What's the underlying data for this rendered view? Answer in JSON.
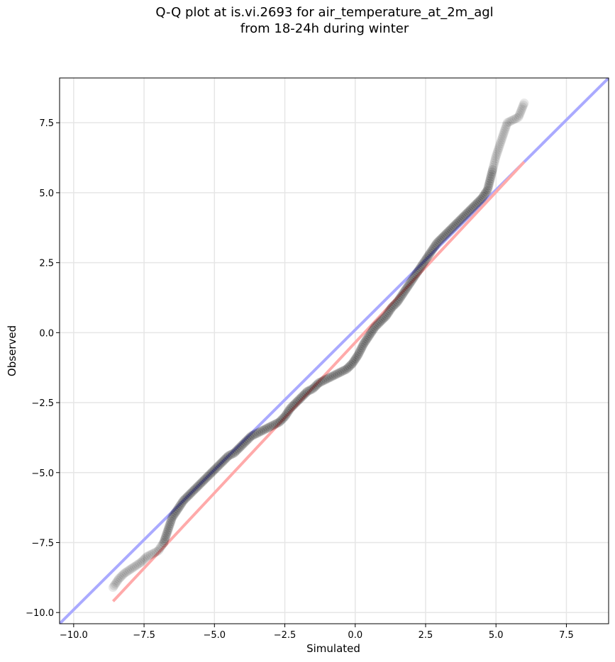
{
  "title_line1": "Q-Q plot at is.vi.2693 for air_temperature_at_2m_agl",
  "title_line2": "from 18-24h during winter",
  "chart_data": {
    "type": "scatter",
    "xlabel": "Simulated",
    "ylabel": "Observed",
    "xlim": [
      -10.5,
      9.0
    ],
    "ylim": [
      -10.4,
      9.1
    ],
    "xticks": [
      -10.0,
      -7.5,
      -5.0,
      -2.5,
      0.0,
      2.5,
      5.0,
      7.5
    ],
    "yticks": [
      -10.0,
      -7.5,
      -5.0,
      -2.5,
      0.0,
      2.5,
      5.0,
      7.5
    ],
    "grid": true,
    "points": [
      [
        -8.6,
        -9.1
      ],
      [
        -8.4,
        -8.8
      ],
      [
        -8.2,
        -8.6
      ],
      [
        -7.9,
        -8.4
      ],
      [
        -7.6,
        -8.2
      ],
      [
        -7.4,
        -8.0
      ],
      [
        -7.2,
        -7.9
      ],
      [
        -7.0,
        -7.8
      ],
      [
        -6.8,
        -7.5
      ],
      [
        -6.7,
        -7.2
      ],
      [
        -6.6,
        -6.9
      ],
      [
        -6.5,
        -6.6
      ],
      [
        -6.3,
        -6.3
      ],
      [
        -6.1,
        -6.0
      ],
      [
        -5.9,
        -5.8
      ],
      [
        -5.7,
        -5.6
      ],
      [
        -5.5,
        -5.4
      ],
      [
        -5.3,
        -5.2
      ],
      [
        -5.1,
        -5.0
      ],
      [
        -4.9,
        -4.8
      ],
      [
        -4.7,
        -4.6
      ],
      [
        -4.5,
        -4.4
      ],
      [
        -4.3,
        -4.3
      ],
      [
        -4.1,
        -4.1
      ],
      [
        -3.9,
        -3.9
      ],
      [
        -3.7,
        -3.7
      ],
      [
        -3.5,
        -3.6
      ],
      [
        -3.3,
        -3.5
      ],
      [
        -3.1,
        -3.4
      ],
      [
        -2.9,
        -3.3
      ],
      [
        -2.7,
        -3.2
      ],
      [
        -2.5,
        -3.0
      ],
      [
        -2.3,
        -2.7
      ],
      [
        -2.1,
        -2.5
      ],
      [
        -1.9,
        -2.3
      ],
      [
        -1.7,
        -2.1
      ],
      [
        -1.5,
        -2.0
      ],
      [
        -1.3,
        -1.8
      ],
      [
        -1.1,
        -1.7
      ],
      [
        -0.9,
        -1.6
      ],
      [
        -0.7,
        -1.5
      ],
      [
        -0.5,
        -1.4
      ],
      [
        -0.3,
        -1.3
      ],
      [
        -0.1,
        -1.1
      ],
      [
        0.1,
        -0.8
      ],
      [
        0.3,
        -0.4
      ],
      [
        0.5,
        -0.1
      ],
      [
        0.7,
        0.2
      ],
      [
        0.9,
        0.4
      ],
      [
        1.1,
        0.6
      ],
      [
        1.3,
        0.9
      ],
      [
        1.5,
        1.1
      ],
      [
        1.7,
        1.4
      ],
      [
        1.9,
        1.7
      ],
      [
        2.1,
        2.0
      ],
      [
        2.3,
        2.3
      ],
      [
        2.5,
        2.6
      ],
      [
        2.7,
        2.9
      ],
      [
        2.9,
        3.2
      ],
      [
        3.1,
        3.4
      ],
      [
        3.3,
        3.6
      ],
      [
        3.5,
        3.8
      ],
      [
        3.7,
        4.0
      ],
      [
        3.9,
        4.2
      ],
      [
        4.1,
        4.4
      ],
      [
        4.3,
        4.6
      ],
      [
        4.5,
        4.8
      ],
      [
        4.7,
        5.1
      ],
      [
        4.8,
        5.5
      ],
      [
        4.9,
        5.9
      ],
      [
        5.0,
        6.3
      ],
      [
        5.1,
        6.6
      ],
      [
        5.2,
        6.9
      ],
      [
        5.3,
        7.2
      ],
      [
        5.4,
        7.5
      ],
      [
        5.6,
        7.6
      ],
      [
        5.8,
        7.7
      ],
      [
        6.0,
        8.2
      ]
    ],
    "point_color": "#000000",
    "reference_lines": [
      {
        "from": [
          -10.5,
          -10.4
        ],
        "to": [
          9.0,
          9.1
        ],
        "color": "#aaaaff"
      },
      {
        "from": [
          -8.6,
          -9.6
        ],
        "to": [
          6.0,
          6.1
        ],
        "color": "#ffaaaa"
      }
    ]
  }
}
